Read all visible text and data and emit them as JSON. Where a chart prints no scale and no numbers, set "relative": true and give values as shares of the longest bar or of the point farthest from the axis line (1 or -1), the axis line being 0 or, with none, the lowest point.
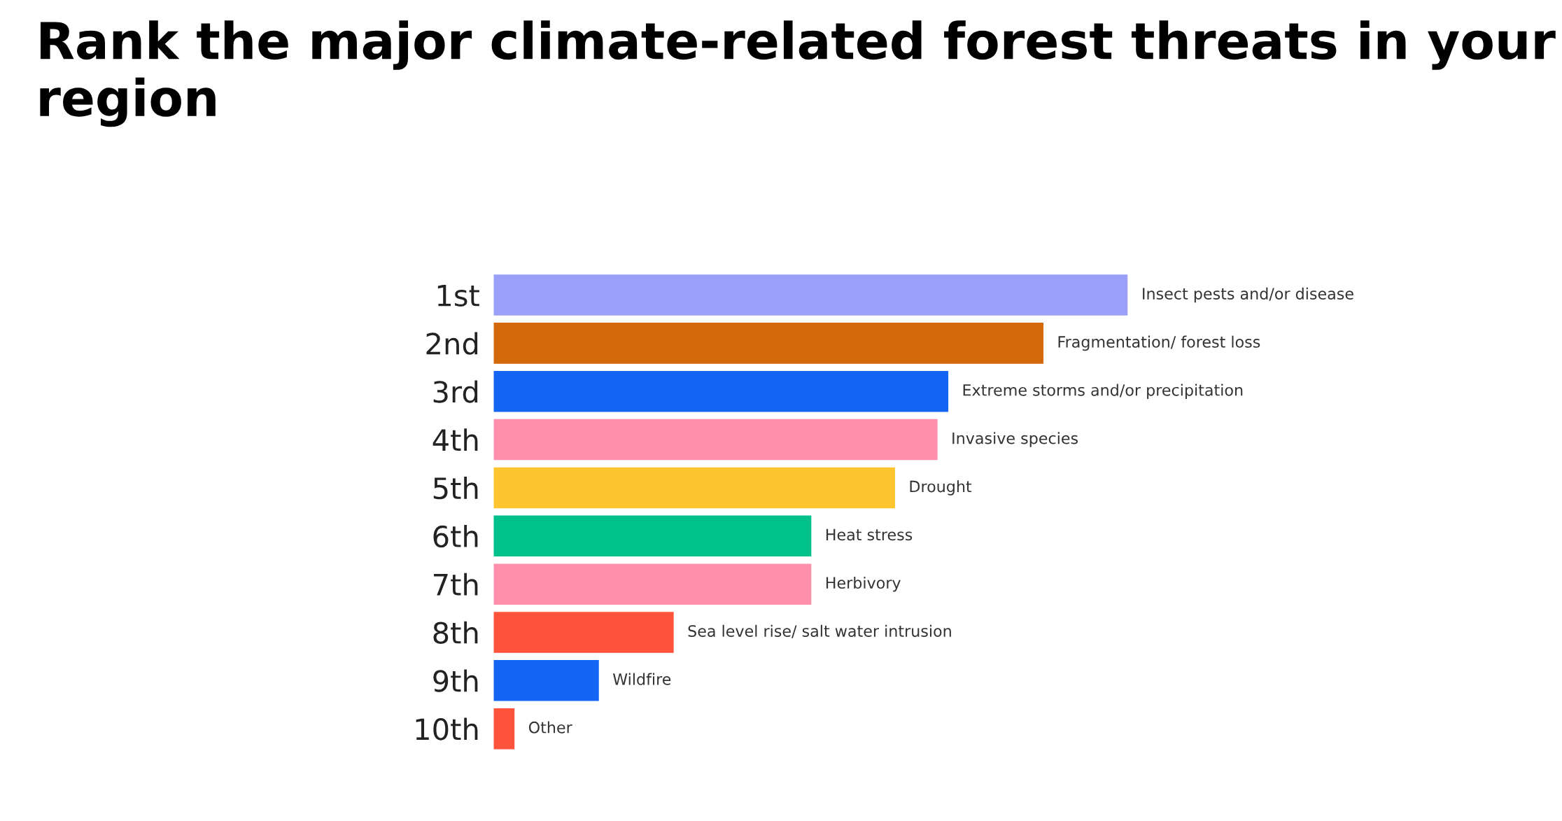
{
  "chart_data": {
    "type": "bar",
    "orientation": "horizontal",
    "relative": true,
    "title": "Rank the major climate-related forest threats in your region",
    "categories": [
      "1st",
      "2nd",
      "3rd",
      "4th",
      "5th",
      "6th",
      "7th",
      "8th",
      "9th",
      "10th"
    ],
    "values": [
      1,
      0.867,
      0.717,
      0.7,
      0.633,
      0.501,
      0.501,
      0.284,
      0.166,
      0.033
    ],
    "colors": [
      "#9aa0f8",
      "#d4690b",
      "#1565f5",
      "#ff8fab",
      "#ffc531",
      "#00c08b",
      "#ff8fab",
      "#ff543b",
      "#1565f5",
      "#ff543b"
    ],
    "annotations": [
      {
        "text": "Insect pests and/or disease",
        "x": 1,
        "y": "1st"
      },
      {
        "text": "Fragmentation/ forest loss",
        "x": 0.867,
        "y": "2nd"
      },
      {
        "text": "Extreme storms and/or precipitation",
        "x": 0.717,
        "y": "3rd"
      },
      {
        "text": "Invasive species",
        "x": 0.7,
        "y": "4th"
      },
      {
        "text": "Drought",
        "x": 0.633,
        "y": "5th"
      },
      {
        "text": "Heat stress",
        "x": 0.501,
        "y": "6th"
      },
      {
        "text": "Herbivory",
        "x": 0.501,
        "y": "7th"
      },
      {
        "text": "Sea level rise/ salt water intrusion",
        "x": 0.284,
        "y": "8th"
      },
      {
        "text": "Wildfire",
        "x": 0.166,
        "y": "9th"
      },
      {
        "text": "Other",
        "x": 0.033,
        "y": "10th"
      }
    ],
    "grid": false,
    "legend": false
  }
}
